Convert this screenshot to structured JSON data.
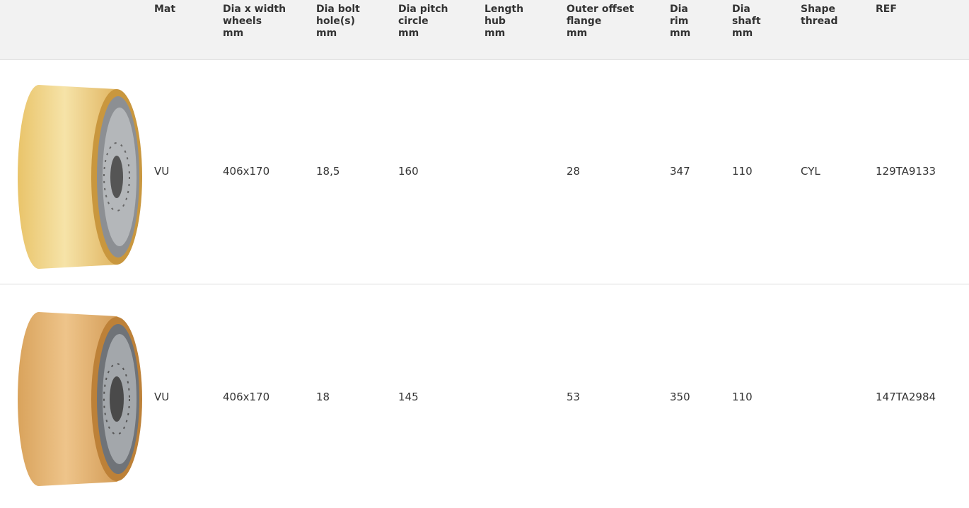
{
  "table": {
    "headers": [
      [
        "Mat"
      ],
      [
        "Dia x width",
        "wheels",
        "mm"
      ],
      [
        "Dia bolt",
        "hole(s)",
        "mm"
      ],
      [
        "Dia pitch",
        "circle",
        "mm"
      ],
      [
        "Length",
        "hub",
        "mm"
      ],
      [
        "Outer offset",
        "flange",
        "mm"
      ],
      [
        "Dia",
        "rim",
        "mm"
      ],
      [
        "Dia",
        "shaft",
        "mm"
      ],
      [
        "Shape",
        "thread"
      ],
      [
        "REF"
      ]
    ],
    "rows": [
      [
        "VU",
        "406x170",
        "18,5",
        "160",
        null,
        "28",
        "347",
        "110",
        "CYL",
        "129TA9133"
      ],
      [
        "VU",
        "406x170",
        "18",
        "145",
        null,
        "53",
        "350",
        "110",
        null,
        "147TA2984"
      ]
    ]
  }
}
